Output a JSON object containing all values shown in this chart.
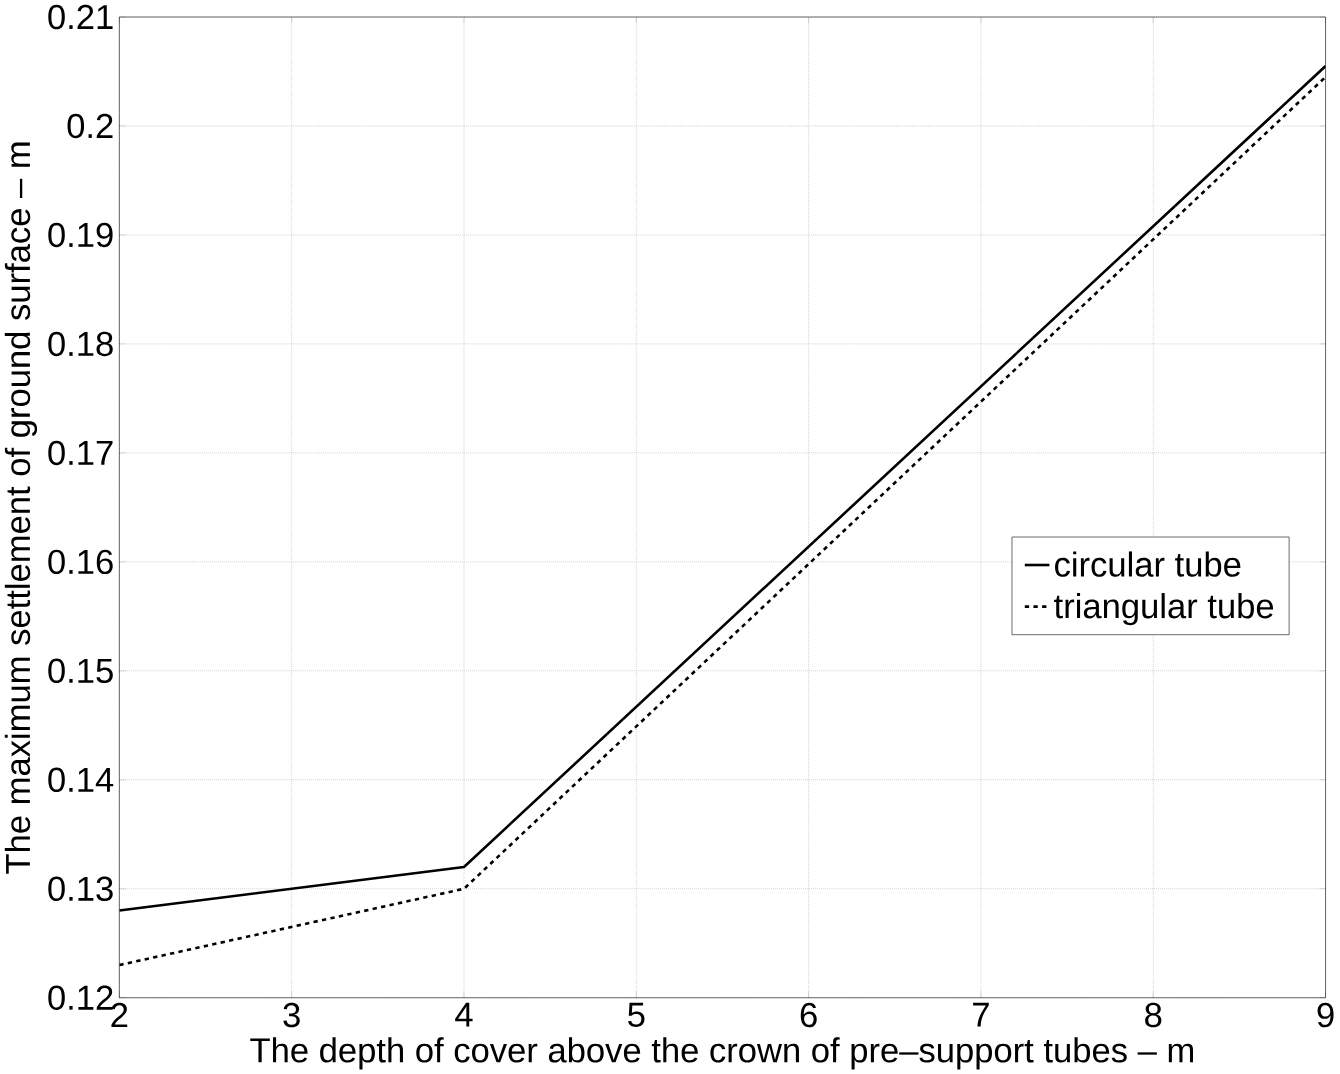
{
  "chart_data": {
    "type": "line",
    "xlabel": "The depth of cover above the crown of pre–support tubes – m",
    "ylabel": "The maximum settlement of ground surface – m",
    "x": [
      2,
      4,
      9
    ],
    "series": [
      {
        "name": "circular tube",
        "color": "#000000",
        "line_style": "solid",
        "values": [
          0.128,
          0.132,
          0.2055
        ]
      },
      {
        "name": "triangular tube",
        "color": "#000000",
        "line_style": "dashed",
        "values": [
          0.123,
          0.13,
          0.2045
        ]
      }
    ],
    "xlim": [
      2,
      9
    ],
    "ylim": [
      0.12,
      0.21
    ],
    "xticks": [
      2,
      3,
      4,
      5,
      6,
      7,
      8,
      9
    ],
    "yticks": [
      0.12,
      0.13,
      0.14,
      0.15,
      0.16,
      0.17,
      0.18,
      0.19,
      0.2,
      0.21
    ],
    "grid": true,
    "legend": "right",
    "marker": "none"
  }
}
